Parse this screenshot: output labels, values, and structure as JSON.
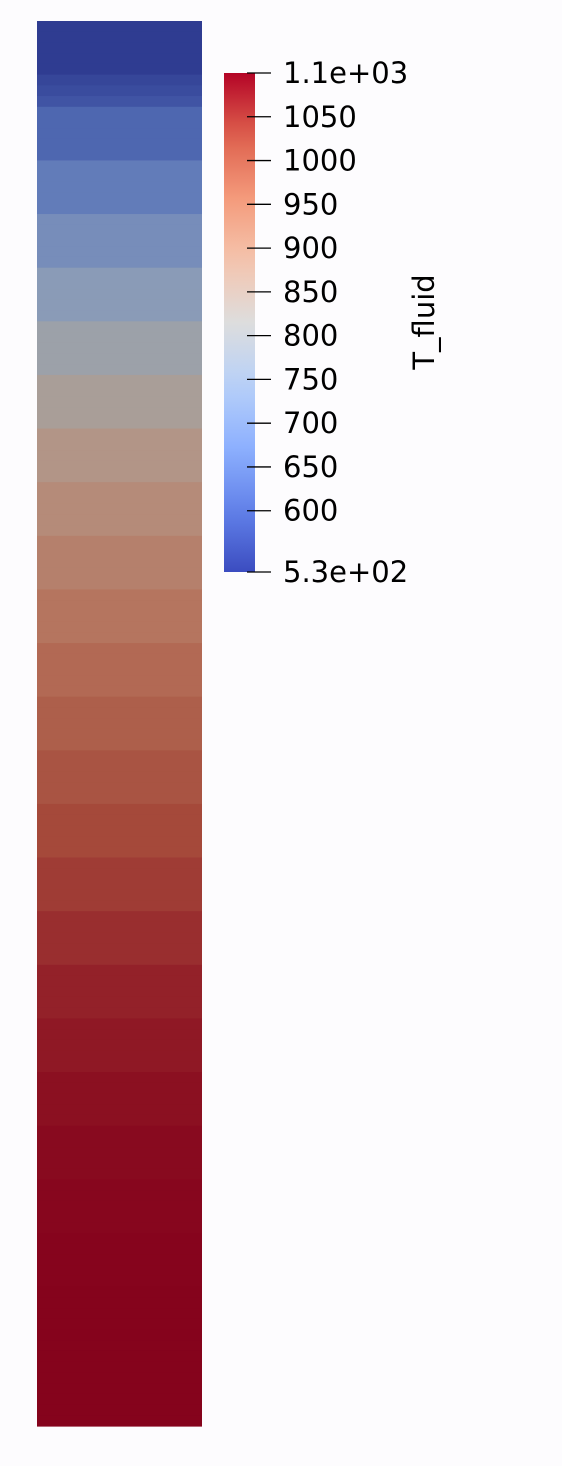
{
  "chart_data": {
    "type": "heatmap",
    "field": "T_fluid",
    "colormap": "coolwarm",
    "range": [
      530,
      1100
    ],
    "colorbar": {
      "title": "T_fluid",
      "min_label": "5.3e+02",
      "max_label": "1.1e+03",
      "ticks": [
        600,
        650,
        700,
        750,
        800,
        850,
        900,
        950,
        1000,
        1050
      ],
      "placement": "top-right of column"
    },
    "cells_top_to_bottom": [
      537,
      537,
      537,
      537,
      537,
      555,
      565,
      580,
      615,
      615,
      615,
      615,
      615,
      660,
      660,
      660,
      660,
      660,
      705,
      705,
      705,
      705,
      705,
      750,
      750,
      750,
      750,
      750,
      795,
      795,
      795,
      795,
      795,
      838,
      838,
      838,
      838,
      838,
      872,
      872,
      872,
      872,
      872,
      900,
      900,
      900,
      900,
      900,
      925,
      925,
      925,
      925,
      925,
      950,
      950,
      950,
      950,
      950,
      972,
      972,
      972,
      972,
      972,
      990,
      990,
      990,
      990,
      990,
      1008,
      1008,
      1008,
      1008,
      1008,
      1025,
      1025,
      1025,
      1025,
      1025,
      1040,
      1040,
      1040,
      1040,
      1040,
      1055,
      1055,
      1055,
      1055,
      1055,
      1068,
      1068,
      1068,
      1068,
      1068,
      1078,
      1078,
      1078,
      1078,
      1078,
      1087,
      1087,
      1087,
      1087,
      1087,
      1093,
      1093,
      1093,
      1093,
      1093,
      1097,
      1097,
      1097,
      1097,
      1097,
      1099,
      1099,
      1099,
      1099,
      1099,
      1100,
      1100,
      1100,
      1100,
      1100,
      1100,
      1100,
      1100,
      1100,
      1100,
      1100,
      1100,
      1100
    ]
  }
}
